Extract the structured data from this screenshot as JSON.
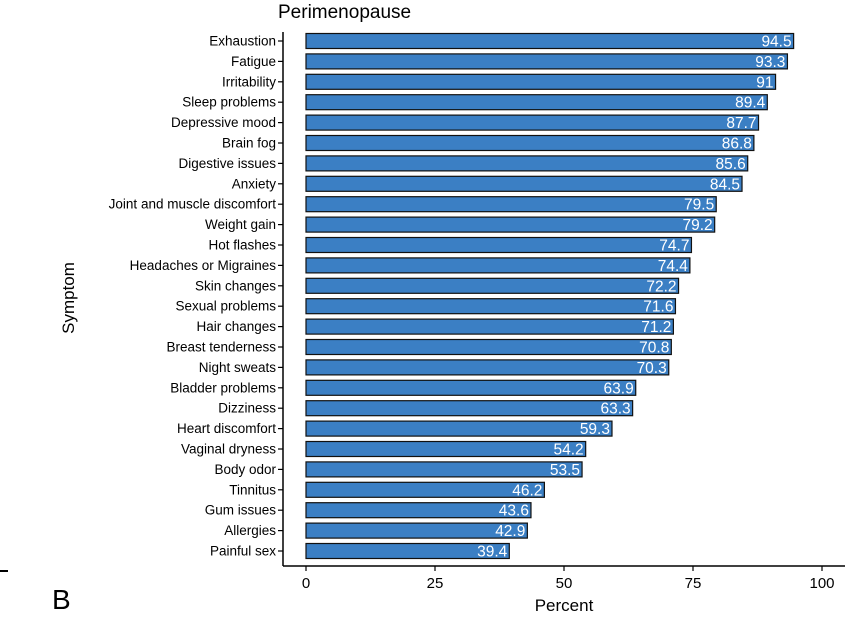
{
  "chart_data": {
    "type": "bar",
    "orientation": "horizontal",
    "title": "Perimenopause",
    "xlabel": "Percent",
    "ylabel": "Symptom",
    "xlim": [
      0,
      100
    ],
    "xticks": [
      0,
      25,
      50,
      75,
      100
    ],
    "categories": [
      "Exhaustion",
      "Fatigue",
      "Irritability",
      "Sleep problems",
      "Depressive mood",
      "Brain fog",
      "Digestive issues",
      "Anxiety",
      "Joint and muscle discomfort",
      "Weight gain",
      "Hot flashes",
      "Headaches or Migraines",
      "Skin changes",
      "Sexual problems",
      "Hair changes",
      "Breast tenderness",
      "Night sweats",
      "Bladder problems",
      "Dizziness",
      "Heart discomfort",
      "Vaginal dryness",
      "Body odor",
      "Tinnitus",
      "Gum issues",
      "Allergies",
      "Painful sex"
    ],
    "values": [
      94.5,
      93.3,
      91,
      89.4,
      87.7,
      86.8,
      85.6,
      84.5,
      79.5,
      79.2,
      74.7,
      74.4,
      72.2,
      71.6,
      71.2,
      70.8,
      70.3,
      63.9,
      63.3,
      59.3,
      54.2,
      53.5,
      46.2,
      43.6,
      42.9,
      39.4
    ],
    "bar_color": "#3b7fc4",
    "bar_edge_color": "#111111",
    "label_color": "#ffffff",
    "panel_label": "B"
  }
}
